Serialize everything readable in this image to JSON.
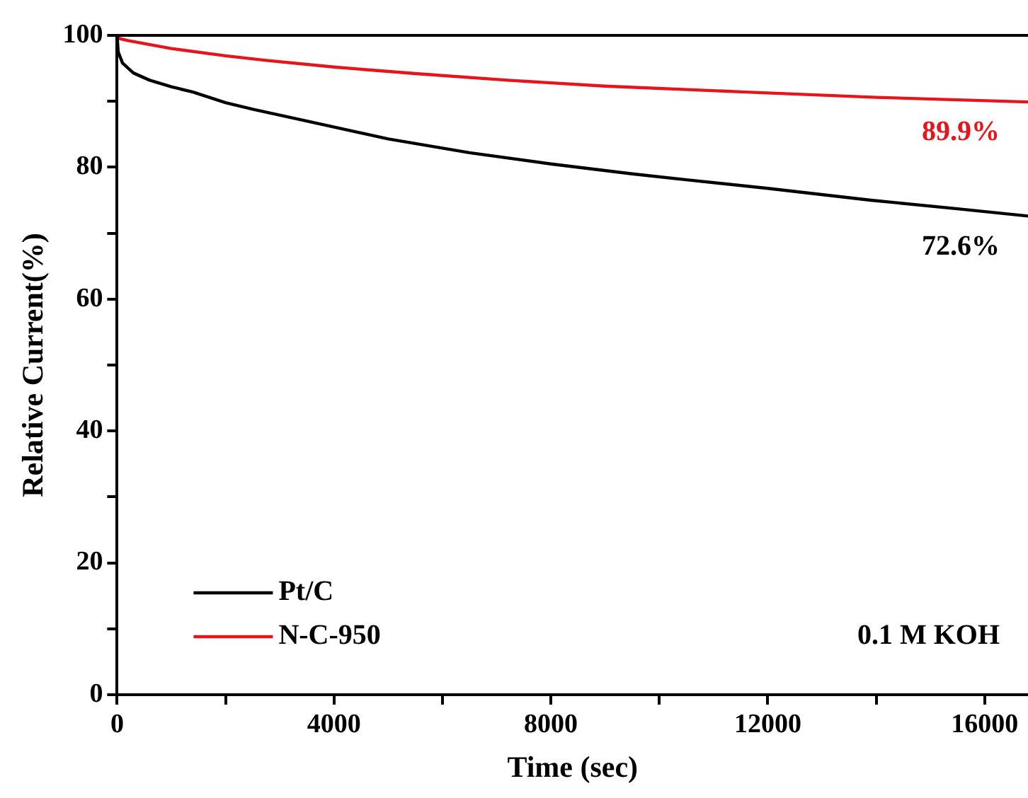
{
  "chart_data": {
    "type": "line",
    "xlabel": "Time (sec)",
    "ylabel": "Relative Current(%)",
    "xlim": [
      0,
      16800
    ],
    "ylim": [
      0,
      100
    ],
    "xticks": [
      0,
      {
        "value": 2000,
        "label": null
      },
      4000,
      {
        "value": 6000,
        "label": null
      },
      8000,
      {
        "value": 10000,
        "label": null
      },
      12000,
      {
        "value": 14000,
        "label": null
      },
      16000
    ],
    "yticks": [
      0,
      {
        "value": 10,
        "label": null
      },
      20,
      {
        "value": 30,
        "label": null
      },
      40,
      {
        "value": 50,
        "label": null
      },
      60,
      {
        "value": 70,
        "label": null
      },
      80,
      {
        "value": 90,
        "label": null
      },
      100
    ],
    "legend": "bottom left",
    "marker": "none",
    "line_style": "solid",
    "series": [
      {
        "name": "Pt/C",
        "color": "#000000",
        "x": [
          0,
          20,
          100,
          300,
          600,
          1000,
          1400,
          2000,
          2500,
          3500,
          5000,
          6500,
          8000,
          9500,
          10500,
          12000,
          13900,
          15500,
          16800
        ],
        "values": [
          100,
          97.5,
          95.8,
          94.3,
          93.2,
          92.2,
          91.4,
          89.8,
          88.8,
          87.0,
          84.3,
          82.2,
          80.5,
          79.0,
          78.1,
          76.8,
          75.0,
          73.7,
          72.6
        ]
      },
      {
        "name": "N-C-950",
        "color": "#e8141b",
        "x": [
          0,
          50,
          200,
          1000,
          2000,
          2750,
          4000,
          5500,
          7200,
          9000,
          11600,
          14000,
          16800
        ],
        "values": [
          100,
          99.5,
          99.2,
          98.0,
          96.9,
          96.2,
          95.2,
          94.2,
          93.2,
          92.3,
          91.4,
          90.6,
          89.9
        ]
      }
    ],
    "annotations": [
      {
        "text": "72.6%",
        "x": 16800,
        "y": 72.6
      },
      {
        "text": "89.9%",
        "x": 16800,
        "y": 89.9
      },
      "0.1 M KOH"
    ]
  }
}
